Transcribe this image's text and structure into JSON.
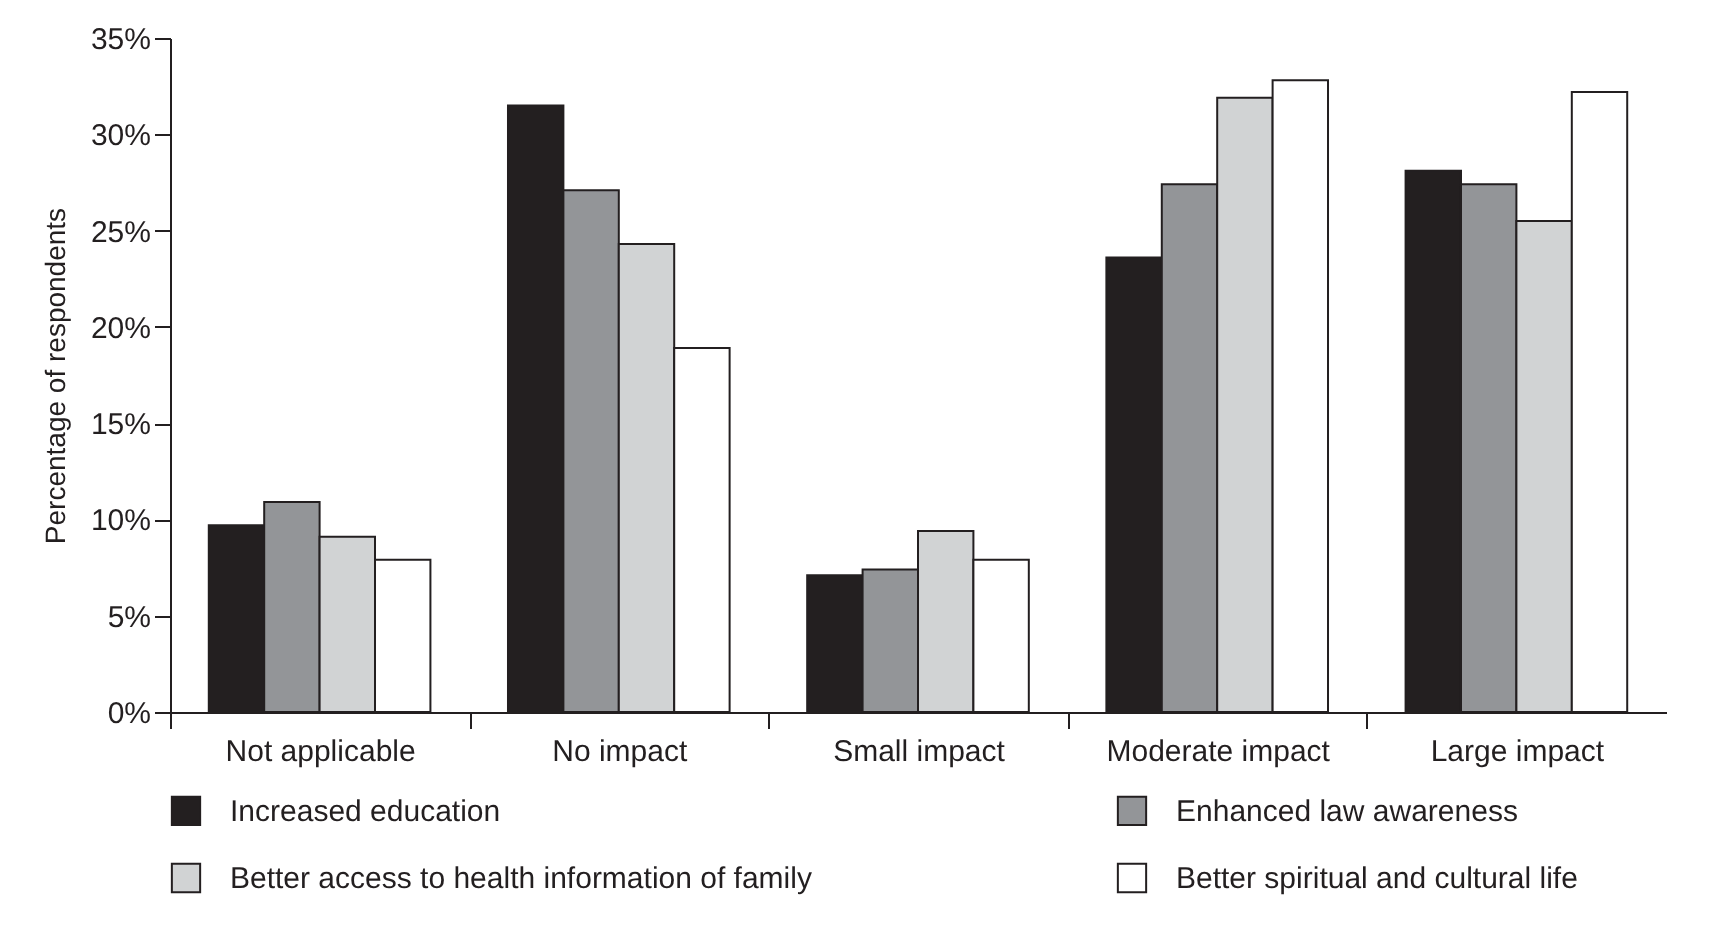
{
  "chart_data": {
    "type": "bar",
    "ylabel": "Percentage of respondents",
    "categories": [
      "Not applicable",
      "No impact",
      "Small impact",
      "Moderate impact",
      "Large impact"
    ],
    "series": [
      {
        "name": "Increased education",
        "color": "#231f20",
        "values": [
          9.7,
          31.5,
          7.1,
          23.6,
          28.1
        ]
      },
      {
        "name": "Enhanced law awareness",
        "color": "#939598",
        "values": [
          10.9,
          27.1,
          7.4,
          27.4,
          27.4
        ]
      },
      {
        "name": "Better access to health information of family",
        "color": "#d1d3d4",
        "values": [
          9.1,
          24.3,
          9.4,
          31.9,
          25.5
        ]
      },
      {
        "name": "Better spiritual and cultural life",
        "color": "#ffffff",
        "values": [
          7.9,
          18.9,
          7.9,
          32.8,
          32.2
        ]
      }
    ],
    "ylim": [
      0,
      35
    ],
    "yticks": [
      {
        "value": 0,
        "label": "0%"
      },
      {
        "value": 5,
        "label": "5%"
      },
      {
        "value": 10,
        "label": "10%"
      },
      {
        "value": 15,
        "label": "15%"
      },
      {
        "value": 20,
        "label": "20%"
      },
      {
        "value": 25,
        "label": "25%"
      },
      {
        "value": 30,
        "label": "30%"
      },
      {
        "value": 35,
        "label": "35%"
      }
    ],
    "grid": false,
    "legend": "bottom"
  }
}
